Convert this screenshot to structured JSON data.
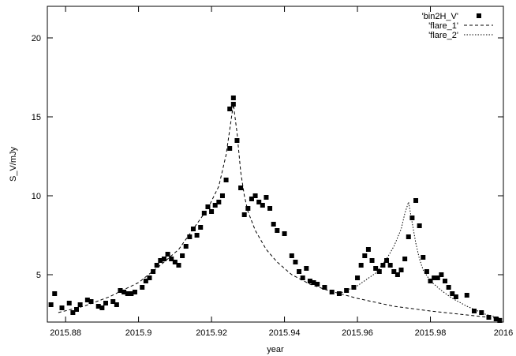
{
  "chart_data": {
    "type": "scatter",
    "title": "",
    "xlabel": "year",
    "ylabel": "S_V/mJy",
    "xlim": [
      2015.875,
      2016.0
    ],
    "ylim": [
      2,
      22
    ],
    "xticks": [
      {
        "value": 2015.88,
        "label": "2015.88"
      },
      {
        "value": 2015.9,
        "label": "2015.9"
      },
      {
        "value": 2015.92,
        "label": "2015.92"
      },
      {
        "value": 2015.94,
        "label": "2015.94"
      },
      {
        "value": 2015.96,
        "label": "2015.96"
      },
      {
        "value": 2015.98,
        "label": "2015.98"
      },
      {
        "value": 2016.0,
        "label": "2016"
      }
    ],
    "yticks": [
      {
        "value": 5,
        "label": "5"
      },
      {
        "value": 10,
        "label": "10"
      },
      {
        "value": 15,
        "label": "15"
      },
      {
        "value": 20,
        "label": "20"
      }
    ],
    "legend_position": "top-right",
    "series": [
      {
        "name": "'bin2H_V'",
        "style": "points",
        "color": "#000000",
        "x": [
          2015.876,
          2015.877,
          2015.879,
          2015.881,
          2015.882,
          2015.883,
          2015.884,
          2015.886,
          2015.887,
          2015.889,
          2015.89,
          2015.891,
          2015.893,
          2015.894,
          2015.895,
          2015.896,
          2015.897,
          2015.898,
          2015.899,
          2015.901,
          2015.902,
          2015.903,
          2015.904,
          2015.905,
          2015.906,
          2015.907,
          2015.908,
          2015.909,
          2015.91,
          2015.911,
          2015.912,
          2015.913,
          2015.914,
          2015.915,
          2015.916,
          2015.917,
          2015.918,
          2015.919,
          2015.92,
          2015.921,
          2015.922,
          2015.923,
          2015.924,
          2015.925,
          2015.925,
          2015.926,
          2015.926,
          2015.927,
          2015.928,
          2015.929,
          2015.93,
          2015.931,
          2015.932,
          2015.933,
          2015.934,
          2015.935,
          2015.936,
          2015.937,
          2015.938,
          2015.94,
          2015.942,
          2015.943,
          2015.944,
          2015.945,
          2015.946,
          2015.947,
          2015.948,
          2015.949,
          2015.951,
          2015.953,
          2015.955,
          2015.957,
          2015.959,
          2015.96,
          2015.961,
          2015.962,
          2015.963,
          2015.964,
          2015.965,
          2015.966,
          2015.967,
          2015.968,
          2015.969,
          2015.97,
          2015.971,
          2015.972,
          2015.973,
          2015.974,
          2015.975,
          2015.976,
          2015.977,
          2015.978,
          2015.979,
          2015.98,
          2015.981,
          2015.982,
          2015.983,
          2015.984,
          2015.985,
          2015.986,
          2015.987,
          2015.99,
          2015.992,
          2015.994,
          2015.996,
          2015.998,
          2015.999
        ],
        "y": [
          3.1,
          3.8,
          2.9,
          3.2,
          2.6,
          2.8,
          3.1,
          3.4,
          3.3,
          3.0,
          2.9,
          3.2,
          3.3,
          3.1,
          4.0,
          3.9,
          3.8,
          3.8,
          3.9,
          4.2,
          4.6,
          4.8,
          5.2,
          5.6,
          5.9,
          6.0,
          6.3,
          6.0,
          5.8,
          5.6,
          6.2,
          6.8,
          7.4,
          7.9,
          7.5,
          8.0,
          8.9,
          9.3,
          9.0,
          9.4,
          9.6,
          10.0,
          11.0,
          13.0,
          15.5,
          16.2,
          15.8,
          13.5,
          10.5,
          8.8,
          9.2,
          9.8,
          10.0,
          9.6,
          9.4,
          9.9,
          9.2,
          8.2,
          7.8,
          7.6,
          6.2,
          5.8,
          5.2,
          4.8,
          5.4,
          4.6,
          4.5,
          4.4,
          4.2,
          3.9,
          3.8,
          4.0,
          4.2,
          4.8,
          5.6,
          6.2,
          6.6,
          5.9,
          5.4,
          5.2,
          5.6,
          5.9,
          5.6,
          5.2,
          5.0,
          5.3,
          6.0,
          7.4,
          8.6,
          9.7,
          8.1,
          6.1,
          5.2,
          4.6,
          4.8,
          4.8,
          5.0,
          4.6,
          4.2,
          3.8,
          3.6,
          3.7,
          2.7,
          2.6,
          2.3,
          2.2,
          2.1
        ]
      },
      {
        "name": "'flare_1'",
        "style": "dashed",
        "color": "#000000",
        "x": [
          2015.878,
          2015.885,
          2015.892,
          2015.9,
          2015.906,
          2015.911,
          2015.915,
          2015.919,
          2015.922,
          2015.924,
          2015.925,
          2015.926,
          2015.927,
          2015.928,
          2015.929,
          2015.93,
          2015.932,
          2015.935,
          2015.938,
          2015.942,
          2015.947,
          2015.952,
          2015.96,
          2015.97,
          2015.98,
          2015.99,
          2016.0
        ],
        "y": [
          2.6,
          3.0,
          3.6,
          4.5,
          5.6,
          6.6,
          7.9,
          9.2,
          10.6,
          12.6,
          14.2,
          15.8,
          14.0,
          11.5,
          10.0,
          9.0,
          7.8,
          6.6,
          5.8,
          5.0,
          4.4,
          4.0,
          3.5,
          3.0,
          2.7,
          2.45,
          2.2
        ]
      },
      {
        "name": "'flare_2'",
        "style": "dotted",
        "color": "#000000",
        "x": [
          2015.955,
          2015.96,
          2015.965,
          2015.968,
          2015.97,
          2015.972,
          2015.973,
          2015.974,
          2015.975,
          2015.976,
          2015.977,
          2015.978,
          2015.98,
          2015.983,
          2015.986,
          2015.99,
          2015.995,
          2016.0
        ],
        "y": [
          3.8,
          4.3,
          5.1,
          6.0,
          6.8,
          7.9,
          8.9,
          9.6,
          8.3,
          7.0,
          6.0,
          5.3,
          4.6,
          4.0,
          3.5,
          3.0,
          2.5,
          2.2
        ]
      }
    ]
  }
}
